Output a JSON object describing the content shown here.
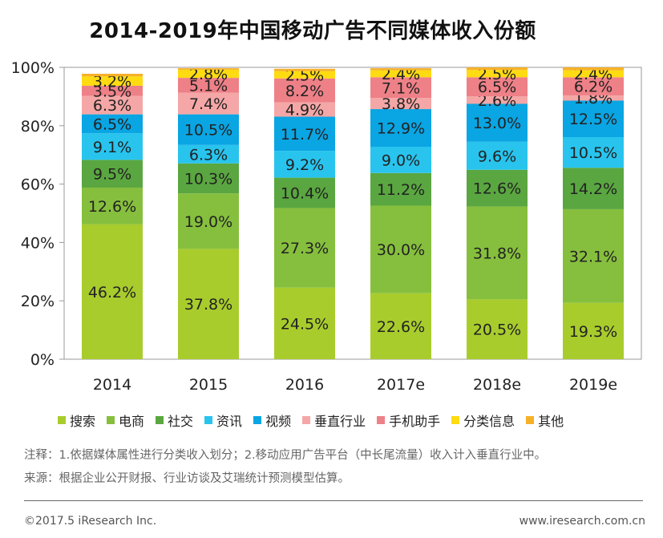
{
  "chart_data": {
    "type": "bar",
    "stacked": true,
    "title": "2014-2019年中国移动广告不同媒体收入份额",
    "categories": [
      "2014",
      "2015",
      "2016",
      "2017e",
      "2018e",
      "2019e"
    ],
    "yticks": [
      "0%",
      "20%",
      "40%",
      "60%",
      "80%",
      "100%"
    ],
    "ylim": [
      0,
      100
    ],
    "legend_position": "bottom",
    "series": [
      {
        "name": "搜索",
        "color": "#a9cc2d",
        "values": [
          46.2,
          37.8,
          24.5,
          22.6,
          20.5,
          19.3
        ]
      },
      {
        "name": "电商",
        "color": "#86bf3d",
        "values": [
          12.6,
          19.0,
          27.3,
          30.0,
          31.8,
          32.1
        ]
      },
      {
        "name": "社交",
        "color": "#5aa640",
        "values": [
          9.5,
          10.3,
          10.4,
          11.2,
          12.6,
          14.2
        ]
      },
      {
        "name": "资讯",
        "color": "#28c4ee",
        "values": [
          9.1,
          6.3,
          9.2,
          9.0,
          9.6,
          10.5
        ]
      },
      {
        "name": "视频",
        "color": "#0aa5e3",
        "values": [
          6.5,
          10.5,
          11.7,
          12.9,
          13.0,
          12.5
        ]
      },
      {
        "name": "垂直行业",
        "color": "#f4a7a6",
        "values": [
          6.3,
          7.4,
          4.9,
          3.8,
          2.6,
          1.8
        ]
      },
      {
        "name": "手机助手",
        "color": "#ee8087",
        "values": [
          3.5,
          5.1,
          8.2,
          7.1,
          6.5,
          6.2
        ]
      },
      {
        "name": "分类信息",
        "color": "#ffdb11",
        "values": [
          3.2,
          2.8,
          2.5,
          2.4,
          2.5,
          2.4
        ]
      },
      {
        "name": "其他",
        "color": "#f6b128",
        "values": [
          0.9,
          0.5,
          0.8,
          0.7,
          0.9,
          1.0
        ]
      }
    ],
    "data_labels": [
      [
        "46.2%",
        "12.6%",
        "9.5%",
        "9.1%",
        "6.5%",
        "6.3%",
        "3.5%",
        "3.2%",
        ""
      ],
      [
        "37.8%",
        "19.0%",
        "10.3%",
        "6.3%",
        "10.5%",
        "7.4%",
        "5.1%",
        "2.8%",
        ""
      ],
      [
        "24.5%",
        "27.3%",
        "10.4%",
        "9.2%",
        "11.7%",
        "4.9%",
        "8.2%",
        "2.5%",
        ""
      ],
      [
        "22.6%",
        "30.0%",
        "11.2%",
        "9.0%",
        "12.9%",
        "3.8%",
        "7.1%",
        "2.4%",
        ""
      ],
      [
        "20.5%",
        "31.8%",
        "12.6%",
        "9.6%",
        "13.0%",
        "2.6%",
        "6.5%",
        "2.5%",
        ""
      ],
      [
        "19.3%",
        "32.1%",
        "14.2%",
        "10.5%",
        "12.5%",
        "1.8%",
        "6.2%",
        "2.4%",
        ""
      ]
    ]
  },
  "notes": {
    "note1": "注释：1.依据媒体属性进行分类收入划分；2.移动应用广告平台（中长尾流量）收入计入垂直行业中。",
    "note2": "来源：根据企业公开财报、行业访谈及艾瑞统计预测模型估算。"
  },
  "footer": {
    "copyright": "©2017.5 iResearch Inc.",
    "website": "www.iresearch.com.cn"
  }
}
